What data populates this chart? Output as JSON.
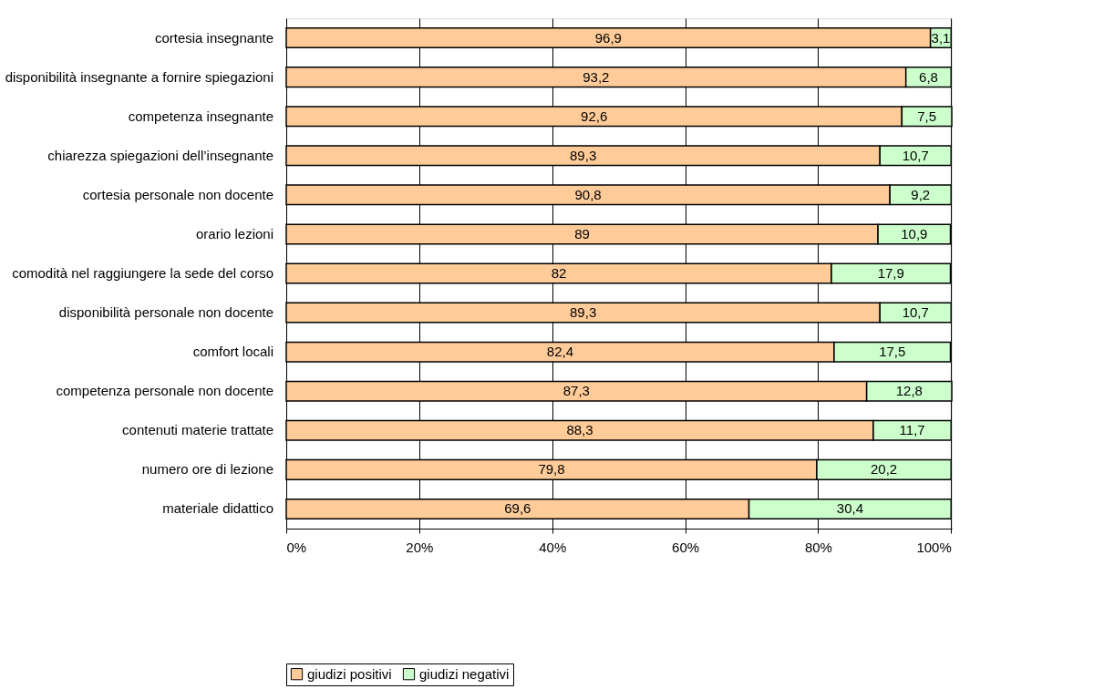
{
  "chart_data": {
    "type": "bar",
    "orientation": "horizontal",
    "stacked": true,
    "categories": [
      "cortesia insegnante",
      "disponibilità insegnante a fornire spiegazioni",
      "competenza insegnante",
      "chiarezza spiegazioni dell’insegnante",
      "cortesia personale non docente",
      "orario lezioni",
      "comodità nel raggiungere la sede del corso",
      "disponibilità personale non docente",
      "comfort locali",
      "competenza personale non docente",
      "contenuti materie trattate",
      "numero ore di lezione",
      "materiale didattico"
    ],
    "series": [
      {
        "name": "giudizi positivi",
        "color": "#ffcc99",
        "values": [
          96.9,
          93.2,
          92.6,
          89.3,
          90.8,
          89,
          82,
          89.3,
          82.4,
          87.3,
          88.3,
          79.8,
          69.6
        ],
        "value_labels": [
          "96,9",
          "93,2",
          "92,6",
          "89,3",
          "90,8",
          "89",
          "82",
          "89,3",
          "82,4",
          "87,3",
          "88,3",
          "79,8",
          "69,6"
        ]
      },
      {
        "name": "giudizi negativi",
        "color": "#ccffcc",
        "values": [
          3.1,
          6.8,
          7.5,
          10.7,
          9.2,
          10.9,
          17.9,
          10.7,
          17.5,
          12.8,
          11.7,
          20.2,
          30.4
        ],
        "value_labels": [
          "3,1",
          "6,8",
          "7,5",
          "10,7",
          "9,2",
          "10,9",
          "17,9",
          "10,7",
          "17,5",
          "12,8",
          "11,7",
          "20,2",
          "30,4"
        ]
      }
    ],
    "xlim": [
      0,
      100.1
    ],
    "xticks": [
      {
        "value": 0,
        "label": "0%"
      },
      {
        "value": 20,
        "label": "20%"
      },
      {
        "value": 40,
        "label": "40%"
      },
      {
        "value": 60,
        "label": "60%"
      },
      {
        "value": 80,
        "label": "80%"
      },
      {
        "value": 100,
        "label": "100%"
      }
    ],
    "grid": "x",
    "legend": "bottom"
  }
}
